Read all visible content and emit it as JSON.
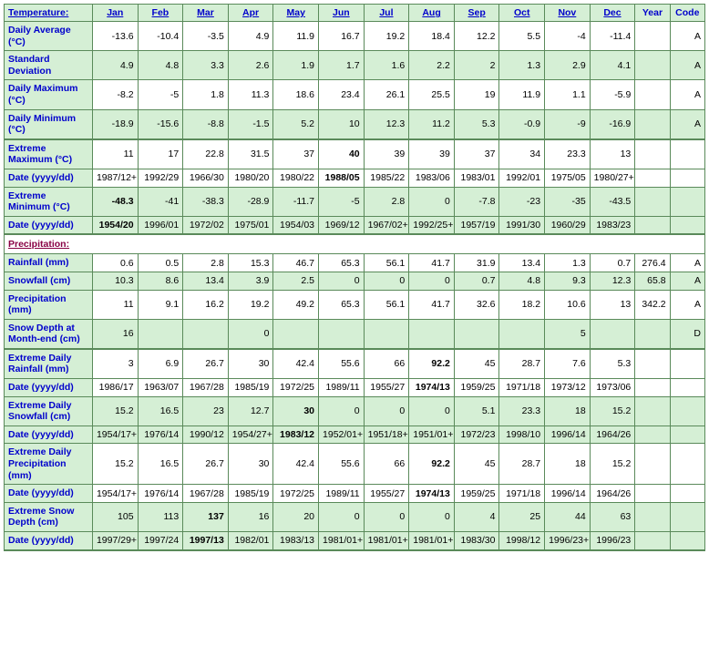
{
  "header": {
    "rowLabel": "Temperature:",
    "months": [
      "Jan",
      "Feb",
      "Mar",
      "Apr",
      "May",
      "Jun",
      "Jul",
      "Aug",
      "Sep",
      "Oct",
      "Nov",
      "Dec"
    ],
    "year": "Year",
    "code": "Code"
  },
  "precipHeader": "Precipitation:",
  "rows": [
    {
      "label": "Daily Average (°C)",
      "bg": "white",
      "vals": [
        "-13.6",
        "-10.4",
        "-3.5",
        "4.9",
        "11.9",
        "16.7",
        "19.2",
        "18.4",
        "12.2",
        "5.5",
        "-4",
        "-11.4",
        "",
        "A"
      ]
    },
    {
      "label": "Standard Deviation",
      "bg": "green",
      "vals": [
        "4.9",
        "4.8",
        "3.3",
        "2.6",
        "1.9",
        "1.7",
        "1.6",
        "2.2",
        "2",
        "1.3",
        "2.9",
        "4.1",
        "",
        "A"
      ]
    },
    {
      "label": "Daily Maximum (°C)",
      "bg": "white",
      "vals": [
        "-8.2",
        "-5",
        "1.8",
        "11.3",
        "18.6",
        "23.4",
        "26.1",
        "25.5",
        "19",
        "11.9",
        "1.1",
        "-5.9",
        "",
        "A"
      ]
    },
    {
      "label": "Daily Minimum (°C)",
      "bg": "green",
      "thick": "bottom",
      "vals": [
        "-18.9",
        "-15.6",
        "-8.8",
        "-1.5",
        "5.2",
        "10",
        "12.3",
        "11.2",
        "5.3",
        "-0.9",
        "-9",
        "-16.9",
        "",
        "A"
      ]
    },
    {
      "label": "Extreme Maximum (°C)",
      "bg": "white",
      "vals": [
        "11",
        "17",
        "22.8",
        "31.5",
        "37",
        "40",
        "39",
        "39",
        "37",
        "34",
        "23.3",
        "13",
        "",
        ""
      ],
      "bold": [
        5
      ]
    },
    {
      "label": "Date (yyyy/dd)",
      "bg": "white",
      "vals": [
        "1987/12+",
        "1992/29",
        "1966/30",
        "1980/20",
        "1980/22",
        "1988/05",
        "1985/22",
        "1983/06",
        "1983/01",
        "1992/01",
        "1975/05",
        "1980/27+",
        "",
        ""
      ],
      "bold": [
        5
      ]
    },
    {
      "label": "Extreme Minimum (°C)",
      "bg": "green",
      "vals": [
        "-48.3",
        "-41",
        "-38.3",
        "-28.9",
        "-11.7",
        "-5",
        "2.8",
        "0",
        "-7.8",
        "-23",
        "-35",
        "-43.5",
        "",
        ""
      ],
      "bold": [
        0
      ]
    },
    {
      "label": "Date (yyyy/dd)",
      "bg": "green",
      "thick": "bottom",
      "vals": [
        "1954/20",
        "1996/01",
        "1972/02",
        "1975/01",
        "1954/03",
        "1969/12",
        "1967/02+",
        "1992/25+",
        "1957/19",
        "1991/30",
        "1960/29",
        "1983/23",
        "",
        ""
      ],
      "bold": [
        0
      ]
    }
  ],
  "precipRows": [
    {
      "label": "Rainfall (mm)",
      "bg": "white",
      "vals": [
        "0.6",
        "0.5",
        "2.8",
        "15.3",
        "46.7",
        "65.3",
        "56.1",
        "41.7",
        "31.9",
        "13.4",
        "1.3",
        "0.7",
        "276.4",
        "A"
      ]
    },
    {
      "label": "Snowfall (cm)",
      "bg": "green",
      "vals": [
        "10.3",
        "8.6",
        "13.4",
        "3.9",
        "2.5",
        "0",
        "0",
        "0",
        "0.7",
        "4.8",
        "9.3",
        "12.3",
        "65.8",
        "A"
      ]
    },
    {
      "label": "Precipitation (mm)",
      "bg": "white",
      "vals": [
        "11",
        "9.1",
        "16.2",
        "19.2",
        "49.2",
        "65.3",
        "56.1",
        "41.7",
        "32.6",
        "18.2",
        "10.6",
        "13",
        "342.2",
        "A"
      ]
    },
    {
      "label": "Snow Depth at Month-end (cm)",
      "bg": "green",
      "thick": "bottom",
      "vals": [
        "16",
        "",
        "",
        "0",
        "",
        "",
        "",
        "",
        "",
        "",
        "5",
        "",
        "",
        "D"
      ]
    },
    {
      "label": "Extreme Daily Rainfall (mm)",
      "bg": "white",
      "vals": [
        "3",
        "6.9",
        "26.7",
        "30",
        "42.4",
        "55.6",
        "66",
        "92.2",
        "45",
        "28.7",
        "7.6",
        "5.3",
        "",
        ""
      ],
      "bold": [
        7
      ]
    },
    {
      "label": "Date (yyyy/dd)",
      "bg": "white",
      "vals": [
        "1986/17",
        "1963/07",
        "1967/28",
        "1985/19",
        "1972/25",
        "1989/11",
        "1955/27",
        "1974/13",
        "1959/25",
        "1971/18",
        "1973/12",
        "1973/06",
        "",
        ""
      ],
      "bold": [
        7
      ]
    },
    {
      "label": "Extreme Daily Snowfall (cm)",
      "bg": "green",
      "vals": [
        "15.2",
        "16.5",
        "23",
        "12.7",
        "30",
        "0",
        "0",
        "0",
        "5.1",
        "23.3",
        "18",
        "15.2",
        "",
        ""
      ],
      "bold": [
        4
      ]
    },
    {
      "label": "Date (yyyy/dd)",
      "bg": "green",
      "vals": [
        "1954/17+",
        "1976/14",
        "1990/12",
        "1954/27+",
        "1983/12",
        "1952/01+",
        "1951/18+",
        "1951/01+",
        "1972/23",
        "1998/10",
        "1996/14",
        "1964/26",
        "",
        ""
      ],
      "bold": [
        4
      ]
    },
    {
      "label": "Extreme Daily Precipitation (mm)",
      "bg": "white",
      "vals": [
        "15.2",
        "16.5",
        "26.7",
        "30",
        "42.4",
        "55.6",
        "66",
        "92.2",
        "45",
        "28.7",
        "18",
        "15.2",
        "",
        ""
      ],
      "bold": [
        7
      ]
    },
    {
      "label": "Date (yyyy/dd)",
      "bg": "white",
      "vals": [
        "1954/17+",
        "1976/14",
        "1967/28",
        "1985/19",
        "1972/25",
        "1989/11",
        "1955/27",
        "1974/13",
        "1959/25",
        "1971/18",
        "1996/14",
        "1964/26",
        "",
        ""
      ],
      "bold": [
        7
      ]
    },
    {
      "label": "Extreme Snow Depth (cm)",
      "bg": "green",
      "vals": [
        "105",
        "113",
        "137",
        "16",
        "20",
        "0",
        "0",
        "0",
        "4",
        "25",
        "44",
        "63",
        "",
        ""
      ],
      "bold": [
        2
      ]
    },
    {
      "label": "Date (yyyy/dd)",
      "bg": "green",
      "thick": "bottom",
      "vals": [
        "1997/29+",
        "1997/24",
        "1997/13",
        "1982/01",
        "1983/13",
        "1981/01+",
        "1981/01+",
        "1981/01+",
        "1983/30",
        "1998/12",
        "1996/23+",
        "1996/23",
        "",
        ""
      ],
      "bold": [
        2
      ]
    }
  ]
}
